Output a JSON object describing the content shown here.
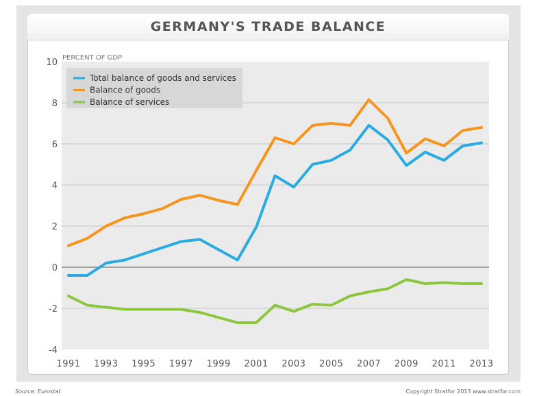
{
  "chart_data": {
    "type": "line",
    "title": "GERMANY'S TRADE BALANCE",
    "ylabel": "PERCENT OF GDP",
    "xlabel": "",
    "xlim": [
      1991,
      2013
    ],
    "ylim": [
      -4,
      10
    ],
    "y_ticks": [
      -4,
      -2,
      0,
      2,
      4,
      6,
      8,
      10
    ],
    "x_tick_labels": [
      "1991",
      "1993",
      "1995",
      "1997",
      "1999",
      "2001",
      "2003",
      "2005",
      "2007",
      "2009",
      "2011",
      "2013"
    ],
    "x": [
      1991,
      1992,
      1993,
      1994,
      1995,
      1996,
      1997,
      1998,
      1999,
      2000,
      2001,
      2002,
      2003,
      2004,
      2005,
      2006,
      2007,
      2008,
      2009,
      2010,
      2011,
      2012,
      2013
    ],
    "grid": "horizontal",
    "legend_position": "top-left",
    "series": [
      {
        "name": "Total balance of goods and services",
        "color": "#29abe2",
        "values": [
          -0.4,
          -0.4,
          0.2,
          0.35,
          0.65,
          0.95,
          1.25,
          1.35,
          0.85,
          0.35,
          1.95,
          4.45,
          3.9,
          5.0,
          5.2,
          5.7,
          6.9,
          6.2,
          4.95,
          5.6,
          5.2,
          5.9,
          6.05
        ]
      },
      {
        "name": "Balance of goods",
        "color": "#f7941d",
        "values": [
          1.05,
          1.4,
          2.0,
          2.4,
          2.6,
          2.85,
          3.3,
          3.5,
          3.25,
          3.05,
          4.7,
          6.3,
          6.0,
          6.9,
          7.0,
          6.9,
          8.15,
          7.25,
          5.55,
          6.25,
          5.9,
          6.65,
          6.8
        ]
      },
      {
        "name": "Balance of services",
        "color": "#8cc63f",
        "values": [
          -1.4,
          -1.85,
          -1.95,
          -2.05,
          -2.05,
          -2.05,
          -2.05,
          -2.2,
          -2.45,
          -2.7,
          -2.7,
          -1.85,
          -2.15,
          -1.8,
          -1.85,
          -1.4,
          -1.2,
          -1.05,
          -0.6,
          -0.8,
          -0.75,
          -0.8,
          -0.8
        ]
      }
    ]
  },
  "footer": {
    "source": "Source: Eurostat",
    "copyright": "Copyright Stratfor 2013    www.stratfor.com"
  }
}
